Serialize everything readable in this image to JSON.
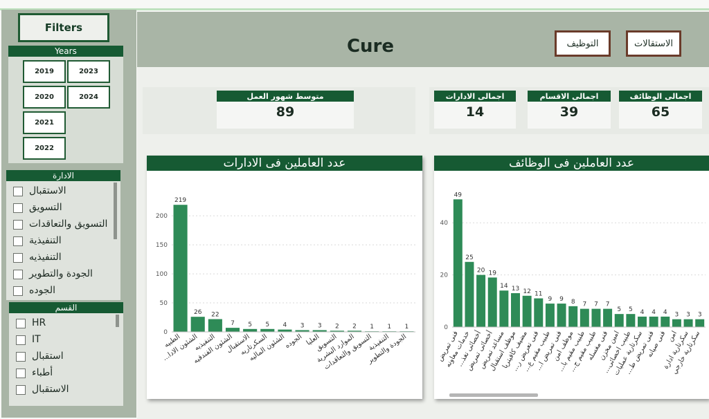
{
  "header": {
    "title": "Cure",
    "buttons": [
      {
        "label": "التوظيف"
      },
      {
        "label": "الاستقالات"
      }
    ]
  },
  "filters": {
    "button_label": "Filters",
    "years": {
      "heading": "Years",
      "options": [
        "2019",
        "2023",
        "2020",
        "2024",
        "2021",
        "2022"
      ]
    },
    "department": {
      "heading": "الادارة",
      "items": [
        "الاستقبال",
        "التسويق",
        "التسويق والتعاقدات",
        "التنفيذية",
        "التنفيذيه",
        "الجودة والتطوير",
        "الجوده"
      ]
    },
    "section": {
      "heading": "القسم",
      "items": [
        "HR",
        "IT",
        "استقبال",
        "أطباء",
        "الاستقبال"
      ]
    }
  },
  "kpis": [
    {
      "label": "متوسط شهور العمل",
      "value": "89"
    },
    {
      "label": "اجمالى الادارات",
      "value": "14"
    },
    {
      "label": "اجمالى الاقسام",
      "value": "39"
    },
    {
      "label": "اجمالى الوظائف",
      "value": "65"
    }
  ],
  "colors": {
    "accent": "#165a33",
    "bar": "#2e8b57",
    "panel": "#a9b5a6"
  },
  "chart_data": [
    {
      "type": "bar",
      "title": "عدد العاملين فى الادارات",
      "categories": [
        "الطبيه",
        "...الشئون الادا",
        "التنفيذيه",
        "الشئون الفندقيه",
        "الاستقبال",
        "السكرتاريه",
        "الشئون الماليه",
        "الجوده",
        "العليا",
        "التسويق",
        "الموارد البشرية",
        "التسويق والتعاقدات",
        "التنفيذية",
        "الجودة والتطوير"
      ],
      "values": [
        219,
        26,
        22,
        7,
        5,
        5,
        4,
        3,
        3,
        2,
        2,
        1,
        1,
        1
      ],
      "yticks": [
        "0",
        "50",
        "100",
        "150",
        "200"
      ],
      "ylim": [
        0,
        230
      ]
    },
    {
      "type": "bar",
      "title": "عدد العاملين فى الوظائف",
      "categories": [
        "فنى تمريض",
        "خدمات معاونه",
        "...أخصائى تغذ",
        "أخصائى تمريض",
        "مساعد تمريض",
        "موظف استقبال",
        "مضيف كافيتريا",
        "...فنى تعريض ر",
        "...طبيب مقيم ع",
        "...فنى تمريض ا",
        "موظف امن",
        "...طبيب مقيم با",
        "...طبيب مقيم ج",
        "فنى مغسله",
        "امين مخزن",
        "...طبيب اخصائى",
        "سكرتارية عمليات",
        "...فنى تمريض ط",
        "فنى صيانه",
        "امن",
        "سكرتارية ادارة",
        "سكرتارية خارجي"
      ],
      "values": [
        49,
        25,
        20,
        19,
        14,
        13,
        12,
        11,
        9,
        9,
        8,
        7,
        7,
        7,
        5,
        5,
        4,
        4,
        4,
        3,
        3,
        3
      ],
      "yticks": [
        "0",
        "20",
        "40"
      ],
      "ylim": [
        0,
        52
      ]
    }
  ]
}
